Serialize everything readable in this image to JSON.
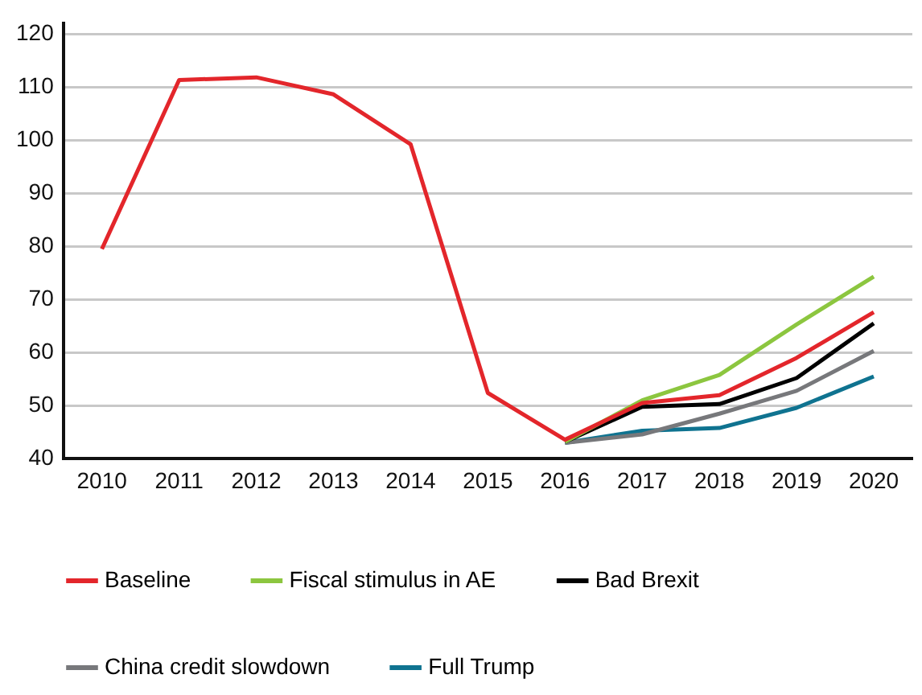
{
  "chart_data": {
    "type": "line",
    "categories": [
      "2010",
      "2011",
      "2012",
      "2013",
      "2014",
      "2015",
      "2016",
      "2017",
      "2018",
      "2019",
      "2020"
    ],
    "series": [
      {
        "name": "Baseline",
        "color": "#e3262b",
        "values": [
          79.5,
          111.3,
          111.8,
          108.6,
          99.2,
          52.4,
          43.6,
          50.5,
          52,
          59,
          67.6
        ]
      },
      {
        "name": "Fiscal stimulus in AE",
        "color": "#8cc63f",
        "values": [
          null,
          null,
          null,
          null,
          null,
          null,
          43.2,
          51,
          55.8,
          65.3,
          74.3
        ]
      },
      {
        "name": "Bad Brexit",
        "color": "#000000",
        "values": [
          null,
          null,
          null,
          null,
          null,
          null,
          43.2,
          49.8,
          50.3,
          55.2,
          65.5
        ]
      },
      {
        "name": "China credit slowdown",
        "color": "#77787b",
        "values": [
          null,
          null,
          null,
          null,
          null,
          null,
          43,
          44.6,
          48.5,
          52.8,
          60.3
        ]
      },
      {
        "name": "Full Trump",
        "color": "#0f7390",
        "values": [
          null,
          null,
          null,
          null,
          null,
          null,
          43,
          45.3,
          45.8,
          49.6,
          55.5
        ]
      }
    ],
    "ylim": [
      40,
      122
    ],
    "yticks": [
      40,
      50,
      60,
      70,
      80,
      90,
      100,
      110,
      120
    ],
    "grid": "y",
    "legend": "bottom",
    "marker": "none",
    "line_style": "solid"
  }
}
